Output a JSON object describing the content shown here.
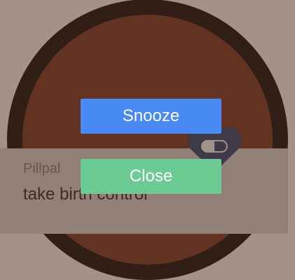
{
  "notification": {
    "app_name": "Pillpal",
    "message": "take birth control",
    "icon": "heart-pill-icon"
  },
  "actions": {
    "snooze_label": "Snooze",
    "close_label": "Close"
  },
  "colors": {
    "bezel": "#000000",
    "background": "#6b2f17",
    "card": "#d7d7d7",
    "snooze": "#4a8af4",
    "close": "#6ccb93",
    "icon": "#1f3f6e"
  }
}
